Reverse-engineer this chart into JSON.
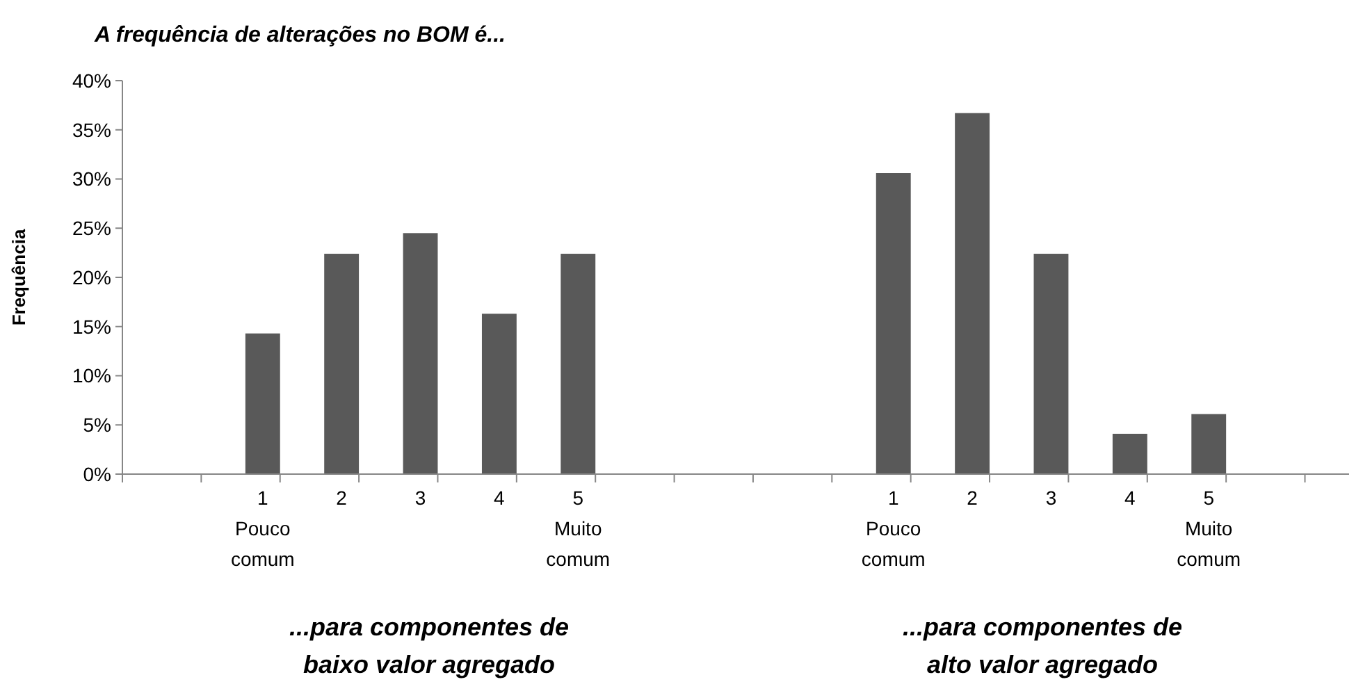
{
  "chart_data": {
    "type": "bar",
    "title": "A frequência de alterações no BOM é...",
    "ylabel": "Frequência",
    "categories": [
      null,
      "1\nPouco\ncomum",
      "2",
      "3",
      "4",
      "5\nMuito\ncomum",
      null,
      null,
      null,
      "1\nPouco\ncomum",
      "2",
      "3",
      "4",
      "5\nMuito\ncomum",
      null
    ],
    "values": [
      null,
      14.3,
      22.4,
      24.5,
      16.3,
      22.4,
      null,
      null,
      null,
      30.6,
      36.7,
      22.4,
      4.1,
      6.1,
      null
    ],
    "color": "#595959",
    "ylim": [
      0,
      40
    ],
    "yticks": [
      {
        "value": 0,
        "label": "0%"
      },
      {
        "value": 5,
        "label": "5%"
      },
      {
        "value": 10,
        "label": "10%"
      },
      {
        "value": 15,
        "label": "15%"
      },
      {
        "value": 20,
        "label": "20%"
      },
      {
        "value": 25,
        "label": "25%"
      },
      {
        "value": 30,
        "label": "30%"
      },
      {
        "value": 35,
        "label": "35%"
      },
      {
        "value": 40,
        "label": "40%"
      }
    ],
    "annotations": [
      "...para componentes de\nbaixo valor agregado",
      "...para componentes de\nalto valor agregado"
    ]
  }
}
